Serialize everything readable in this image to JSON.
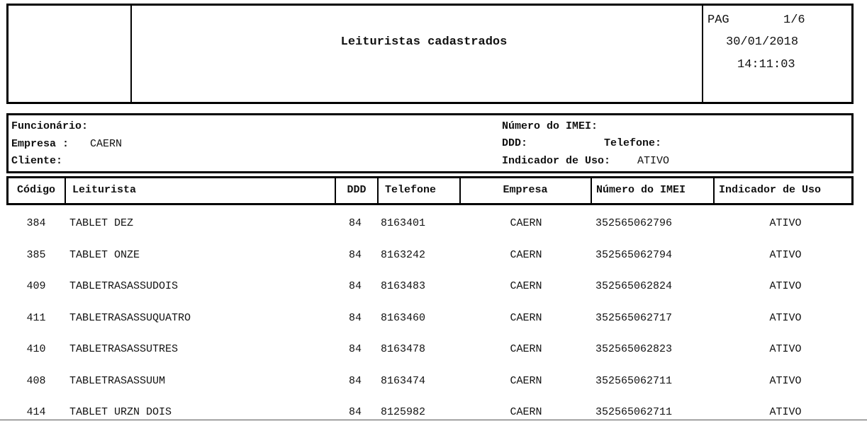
{
  "header": {
    "title": "Leituristas cadastrados",
    "page_label": "PAG",
    "page": "1/6",
    "date": "30/01/2018",
    "time": "14:11:03"
  },
  "filters": {
    "left": [
      {
        "label": "Funcionário:"
      },
      {
        "label": "Empresa :",
        "value": "CAERN"
      },
      {
        "label": "Cliente:"
      }
    ],
    "imei": {
      "label": "Número do IMEI:"
    },
    "ddd": {
      "label": "DDD:"
    },
    "telefone": {
      "label": "Telefone:"
    },
    "indicador": {
      "label": "Indicador de Uso:",
      "value": "ATIVO"
    }
  },
  "table": {
    "columns": [
      "Código",
      "Leiturista",
      "DDD",
      "Telefone",
      "Empresa",
      "Número do IMEI",
      "Indicador de Uso"
    ],
    "rows": [
      [
        "384",
        "TABLET DEZ",
        "84",
        "8163401",
        "CAERN",
        "352565062796",
        "ATIVO"
      ],
      [
        "385",
        "TABLET ONZE",
        "84",
        "8163242",
        "CAERN",
        "352565062794",
        "ATIVO"
      ],
      [
        "409",
        "TABLETRASASSUDOIS",
        "84",
        "8163483",
        "CAERN",
        "352565062824",
        "ATIVO"
      ],
      [
        "411",
        "TABLETRASASSUQUATRO",
        "84",
        "8163460",
        "CAERN",
        "352565062717",
        "ATIVO"
      ],
      [
        "410",
        "TABLETRASASSUTRES",
        "84",
        "8163478",
        "CAERN",
        "352565062823",
        "ATIVO"
      ],
      [
        "408",
        "TABLETRASASSUUM",
        "84",
        "8163474",
        "CAERN",
        "352565062711",
        "ATIVO"
      ],
      [
        "414",
        "TABLET URZN DOIS",
        "84",
        "8125982",
        "CAERN",
        "352565062711",
        "ATIVO"
      ]
    ]
  }
}
